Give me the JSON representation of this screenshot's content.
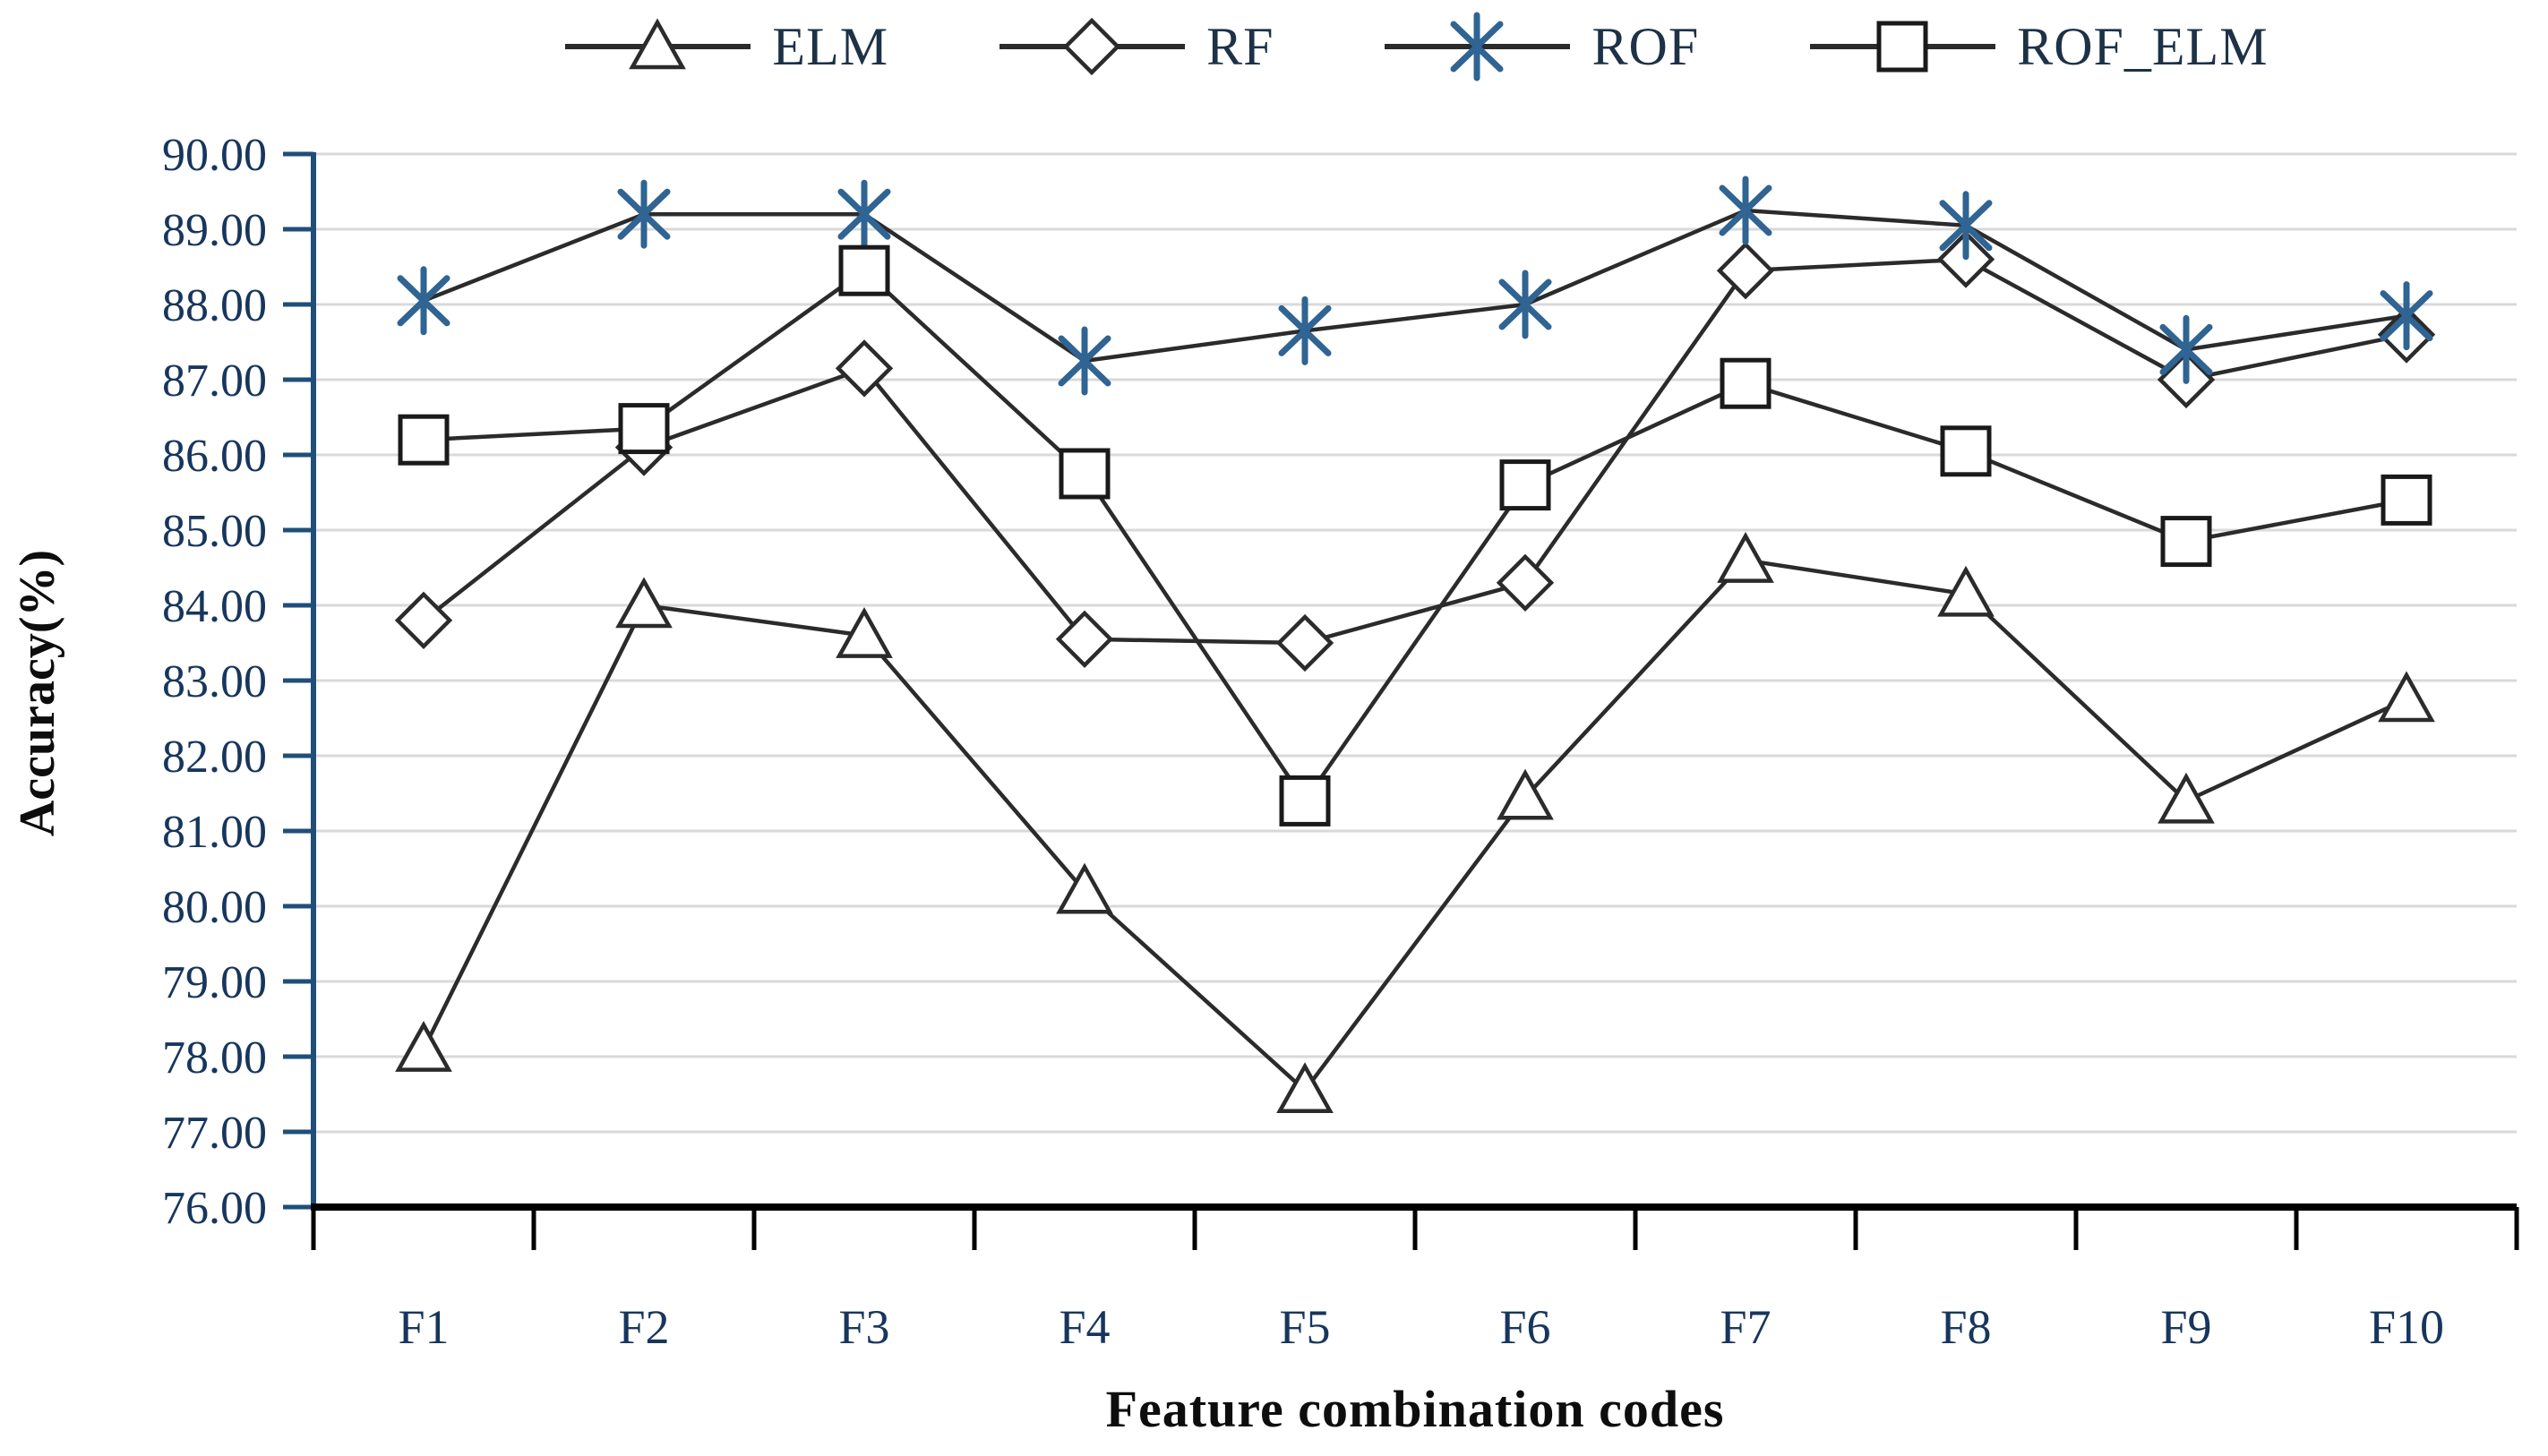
{
  "figure": {
    "x_axis_title": "Feature combination codes",
    "y_axis_title": "Accuracy(%)",
    "background": "#ffffff"
  },
  "colors": {
    "gridline": "#d9d9d9",
    "y_axis": "#1f4e79",
    "x_axis": "#000000",
    "series_line": "#2b2b2b",
    "rof_marker_blue": "#2f6493",
    "tick_label": "#17365d",
    "legend_text": "#1d3147",
    "title_text": "#0d0d0d"
  },
  "chart_data": {
    "type": "line",
    "title": "",
    "xlabel": "Feature combination codes",
    "ylabel": "Accuracy(%)",
    "categories": [
      "F1",
      "F2",
      "F3",
      "F4",
      "F5",
      "F6",
      "F7",
      "F8",
      "F9",
      "F10"
    ],
    "ylim": [
      76.0,
      90.0
    ],
    "ytick_step": 1.0,
    "ytick_labels": [
      "90.00",
      "89.00",
      "88.00",
      "87.00",
      "86.00",
      "85.00",
      "84.00",
      "83.00",
      "82.00",
      "81.00",
      "80.00",
      "79.00",
      "78.00",
      "77.00",
      "76.00"
    ],
    "grid": "horizontal",
    "legend_position": "top",
    "series": [
      {
        "name": "ELM",
        "marker": "triangle",
        "line_color": "#2b2b2b",
        "marker_color": "#2b2b2b",
        "marker_fill": "#ffffff",
        "values": [
          78.1,
          84.0,
          83.6,
          80.2,
          77.55,
          81.45,
          84.6,
          84.15,
          81.4,
          82.75
        ]
      },
      {
        "name": "RF",
        "marker": "diamond",
        "line_color": "#2b2b2b",
        "marker_color": "#2b2b2b",
        "marker_fill": "#ffffff",
        "values": [
          83.8,
          86.1,
          87.15,
          83.55,
          83.5,
          84.3,
          88.45,
          88.6,
          87.0,
          87.6
        ]
      },
      {
        "name": "ROF",
        "marker": "asterisk",
        "line_color": "#2b2b2b",
        "marker_color": "#2f6493",
        "marker_fill": "none",
        "values": [
          88.05,
          89.2,
          89.2,
          87.25,
          87.65,
          88.0,
          89.25,
          89.05,
          87.4,
          87.85
        ]
      },
      {
        "name": "ROF_ELM",
        "marker": "square",
        "line_color": "#2b2b2b",
        "marker_color": "#1a1a1a",
        "marker_fill": "#ffffff",
        "values": [
          86.2,
          86.35,
          88.45,
          85.75,
          81.4,
          85.6,
          86.95,
          86.05,
          84.85,
          85.4
        ]
      }
    ]
  }
}
